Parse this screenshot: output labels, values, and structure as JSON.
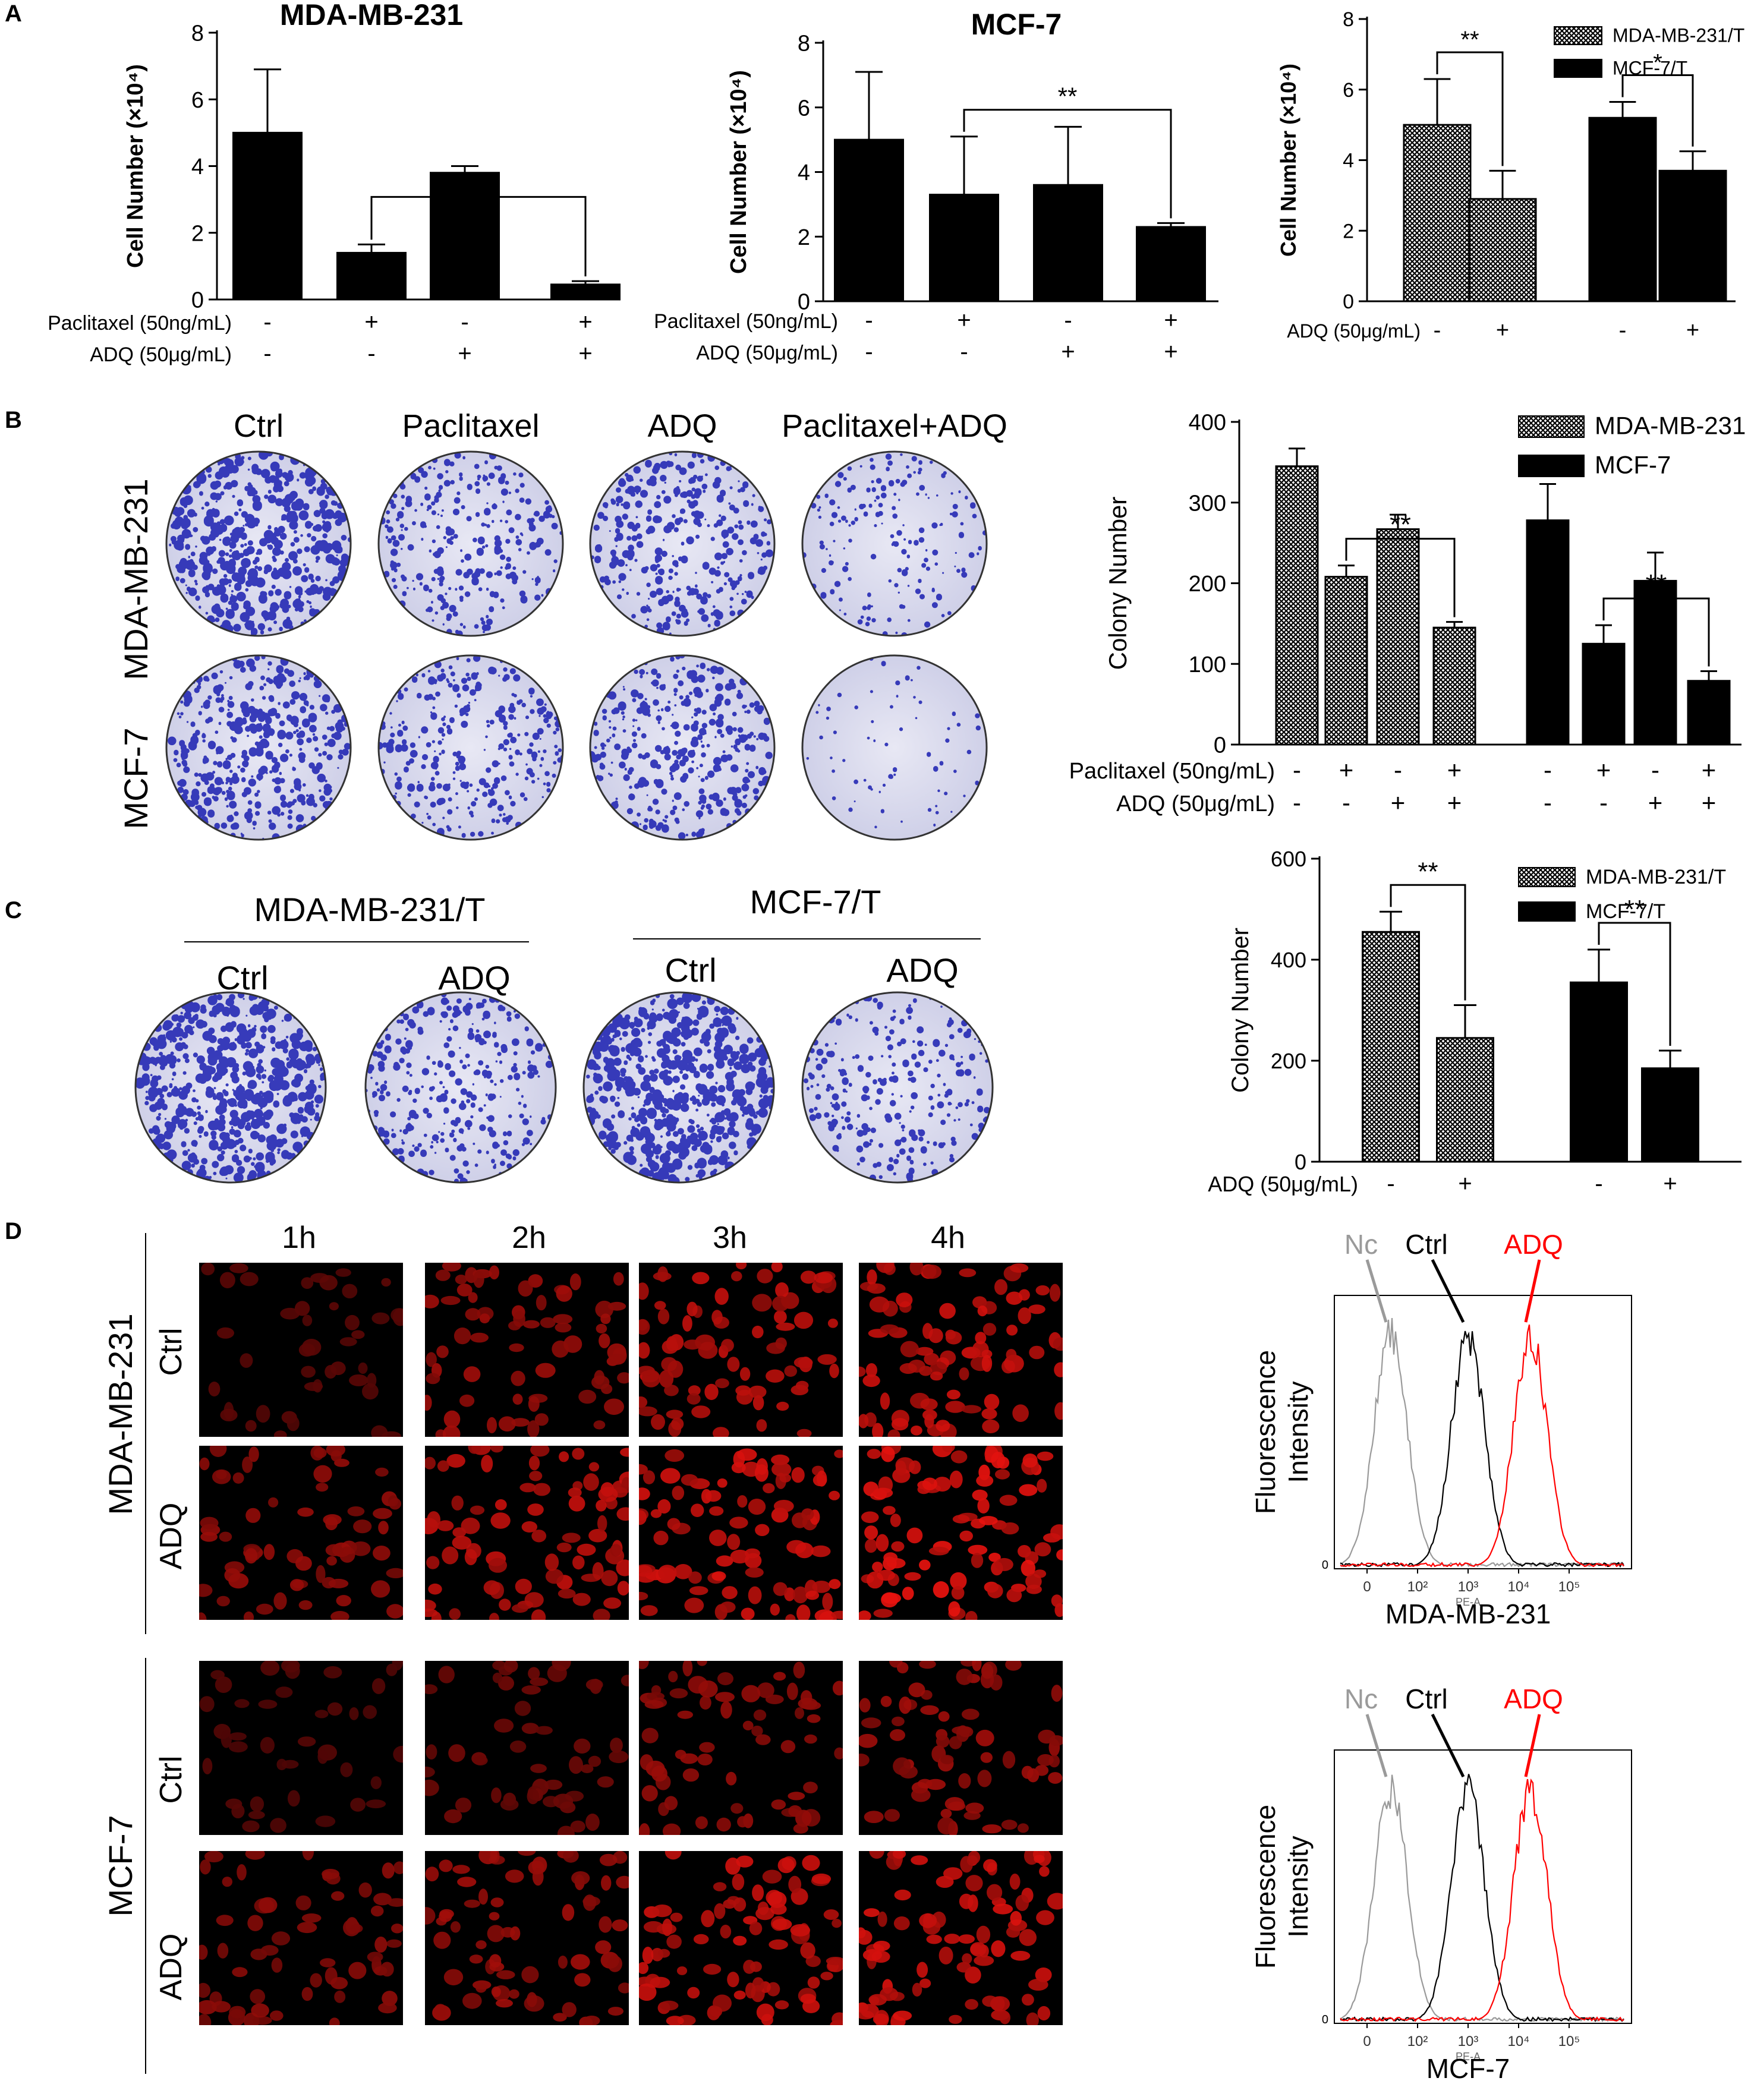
{
  "panel_labels": [
    "A",
    "B",
    "C",
    "D"
  ],
  "colors": {
    "bar_black": "#000000",
    "stain_blue": "#1f2fbf",
    "plate_bg": "#dcdcef",
    "fluor_red": "#ff2a2a",
    "nc_gray": "#9a9a9a",
    "adq_red": "#ff0000"
  },
  "chart_data": [
    {
      "id": "A1",
      "type": "bar",
      "title": "MDA-MB-231",
      "ylabel": "Cell Number (×10⁴)",
      "ylim": [
        0,
        8
      ],
      "yticks": [
        "0",
        "2",
        "4",
        "6",
        "8"
      ],
      "treatments": [
        {
          "label": "Paclitaxel (50ng/mL)",
          "signs": [
            "-",
            "+",
            "-",
            "+"
          ]
        },
        {
          "label": "ADQ (50μg/mL)",
          "signs": [
            "-",
            "-",
            "+",
            "+"
          ]
        }
      ],
      "series": [
        {
          "values": [
            5.0,
            1.4,
            3.8,
            0.45
          ],
          "errors": [
            1.9,
            0.25,
            0.2,
            0.1
          ],
          "pattern": "black"
        }
      ],
      "significance": [
        {
          "from": 1,
          "to": 3,
          "label": "**"
        }
      ]
    },
    {
      "id": "A2",
      "type": "bar",
      "title": "MCF-7",
      "ylabel": "Cell Number (×10⁴)",
      "ylim": [
        0,
        8
      ],
      "yticks": [
        "0",
        "2",
        "4",
        "6",
        "8"
      ],
      "treatments": [
        {
          "label": "Paclitaxel (50ng/mL)",
          "signs": [
            "-",
            "+",
            "-",
            "+"
          ]
        },
        {
          "label": "ADQ (50μg/mL)",
          "signs": [
            "-",
            "-",
            "+",
            "+"
          ]
        }
      ],
      "series": [
        {
          "values": [
            5.0,
            3.3,
            3.6,
            2.3
          ],
          "errors": [
            2.1,
            1.8,
            1.8,
            0.12
          ],
          "pattern": "black"
        }
      ],
      "significance": [
        {
          "from": 1,
          "to": 3,
          "label": "**"
        }
      ]
    },
    {
      "id": "A3",
      "type": "bar",
      "ylabel": "Cell Number (×10⁴)",
      "ylim": [
        0,
        8
      ],
      "yticks": [
        "0",
        "2",
        "4",
        "6",
        "8"
      ],
      "legend": [
        {
          "name": "MDA-MB-231/T",
          "pattern": "hatch"
        },
        {
          "name": "MCF-7/T",
          "pattern": "black"
        }
      ],
      "treatments": [
        {
          "label": "ADQ (50μg/mL)",
          "signs": [
            "-",
            "+",
            "-",
            "+"
          ]
        }
      ],
      "series": [
        {
          "name": "MDA-MB-231/T",
          "values": [
            5.0,
            2.9
          ],
          "errors": [
            1.3,
            0.8
          ],
          "pattern": "hatch"
        },
        {
          "name": "MCF-7/T",
          "values": [
            5.2,
            3.7
          ],
          "errors": [
            0.45,
            0.55
          ],
          "pattern": "black"
        }
      ],
      "significance": [
        {
          "from": 0,
          "to": 1,
          "label": "**"
        },
        {
          "from": 2,
          "to": 3,
          "label": "*"
        }
      ]
    },
    {
      "id": "B",
      "type": "bar",
      "ylabel": "Colony Number",
      "ylim": [
        0,
        400
      ],
      "yticks": [
        "0",
        "100",
        "200",
        "300",
        "400"
      ],
      "legend": [
        {
          "name": "MDA-MB-231",
          "pattern": "hatch"
        },
        {
          "name": "MCF-7",
          "pattern": "black"
        }
      ],
      "treatments": [
        {
          "label": "Paclitaxel (50ng/mL)",
          "signs": [
            "-",
            "+",
            "-",
            "+",
            "-",
            "+",
            "-",
            "+"
          ]
        },
        {
          "label": "ADQ (50μg/mL)",
          "signs": [
            "-",
            "-",
            "+",
            "+",
            "-",
            "-",
            "+",
            "+"
          ]
        }
      ],
      "series": [
        {
          "name": "MDA-MB-231",
          "values": [
            345,
            208,
            267,
            145
          ],
          "errors": [
            22,
            14,
            18,
            7
          ],
          "pattern": "hatch"
        },
        {
          "name": "MCF-7",
          "values": [
            278,
            125,
            203,
            79
          ],
          "errors": [
            45,
            23,
            35,
            12
          ],
          "pattern": "black"
        }
      ],
      "significance": [
        {
          "from": 1,
          "to": 3,
          "label": "**"
        },
        {
          "from": 5,
          "to": 7,
          "label": "**"
        }
      ]
    },
    {
      "id": "C",
      "type": "bar",
      "ylabel": "Colony Number",
      "ylim": [
        0,
        600
      ],
      "yticks": [
        "0",
        "200",
        "400",
        "600"
      ],
      "legend": [
        {
          "name": "MDA-MB-231/T",
          "pattern": "hatch"
        },
        {
          "name": "MCF-7/T",
          "pattern": "black"
        }
      ],
      "treatments": [
        {
          "label": "ADQ (50μg/mL)",
          "signs": [
            "-",
            "+",
            "-",
            "+"
          ]
        }
      ],
      "series": [
        {
          "name": "MDA-MB-231/T",
          "values": [
            455,
            245
          ],
          "errors": [
            40,
            65
          ],
          "pattern": "hatch"
        },
        {
          "name": "MCF-7/T",
          "values": [
            355,
            185
          ],
          "errors": [
            65,
            35
          ],
          "pattern": "black"
        }
      ],
      "significance": [
        {
          "from": 0,
          "to": 1,
          "label": "**"
        },
        {
          "from": 2,
          "to": 3,
          "label": "**"
        }
      ]
    }
  ],
  "panel_B_images": {
    "columns": [
      "Ctrl",
      "Paclitaxel",
      "ADQ",
      "Paclitaxel+ADQ"
    ],
    "rows": [
      "MDA-MB-231",
      "MCF-7"
    ],
    "density": [
      [
        0.9,
        0.45,
        0.55,
        0.25
      ],
      [
        0.7,
        0.5,
        0.6,
        0.05
      ]
    ]
  },
  "panel_C_images": {
    "groups": [
      "MDA-MB-231/T",
      "MCF-7/T"
    ],
    "columns": [
      "Ctrl",
      "ADQ",
      "Ctrl",
      "ADQ"
    ],
    "density": [
      0.95,
      0.5,
      1.0,
      0.4
    ]
  },
  "panel_D_images": {
    "columns": [
      "1h",
      "2h",
      "3h",
      "4h"
    ],
    "groups": [
      {
        "name": "MDA-MB-231",
        "rows": [
          "Ctrl",
          "ADQ"
        ]
      },
      {
        "name": "MCF-7",
        "rows": [
          "Ctrl",
          "ADQ"
        ]
      }
    ],
    "intensity": [
      [
        0.18,
        0.55,
        0.75,
        0.8
      ],
      [
        0.5,
        0.75,
        0.85,
        0.95
      ],
      [
        0.15,
        0.3,
        0.5,
        0.55
      ],
      [
        0.45,
        0.55,
        0.8,
        0.85
      ]
    ]
  },
  "flow_plots": [
    {
      "cell_line": "MDA-MB-231",
      "ylabel": "Fluorescence Intensity",
      "ylabel_lines": [
        "Fluorescence",
        "Intensity"
      ],
      "curves": [
        "Nc",
        "Ctrl",
        "ADQ"
      ],
      "x_ticks": [
        "0",
        "10²",
        "10³",
        "10⁴",
        "10⁵"
      ],
      "y_zero": "0",
      "axis_sub": "PE-A"
    },
    {
      "cell_line": "MCF-7",
      "ylabel": "Fluorescence Intensity",
      "ylabel_lines": [
        "Fluorescence",
        "Intensity"
      ],
      "curves": [
        "Nc",
        "Ctrl",
        "ADQ"
      ],
      "x_ticks": [
        "0",
        "10²",
        "10³",
        "10⁴",
        "10⁵"
      ],
      "y_zero": "0",
      "axis_sub": "PE-A"
    }
  ]
}
